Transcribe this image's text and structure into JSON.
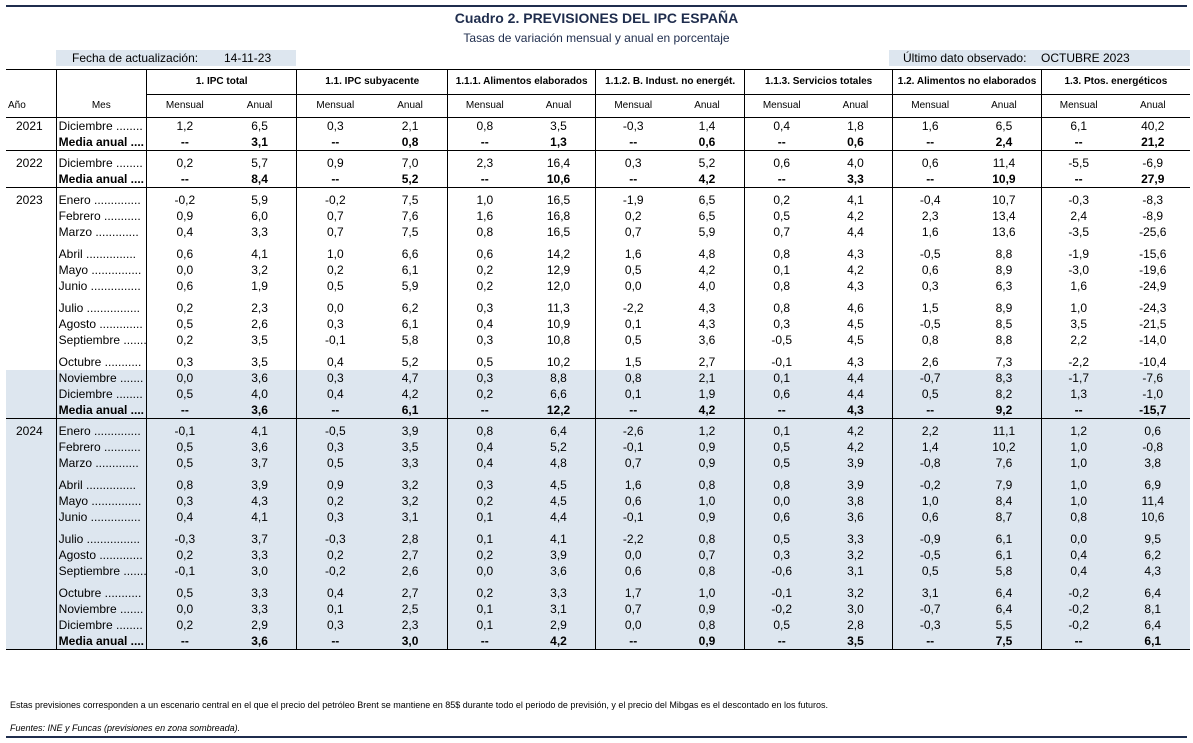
{
  "title": "Cuadro 2. PREVISIONES DEL IPC ESPAÑA",
  "subtitle": "Tasas de variación mensual y anual en porcentaje",
  "update_label": "Fecha de actualización:",
  "update_value": "14-11-23",
  "last_label": "Último dato observado:",
  "last_value": "OCTUBRE 2023",
  "header": {
    "year": "Año",
    "month": "Mes",
    "groups": [
      "1. IPC total",
      "1.1. IPC subyacente",
      "1.1.1. Alimentos elaborados",
      "1.1.2. B. Indust. no energét.",
      "1.1.3. Servicios totales",
      "1.2. Alimentos no elaborados",
      "1.3. Ptos. energéticos"
    ],
    "mensual": "Mensual",
    "anual": "Anual"
  },
  "rows": [
    {
      "year": "2021",
      "month": "Diciembre ........",
      "v": [
        "1,2",
        "6,5",
        "0,3",
        "2,1",
        "0,8",
        "3,5",
        "-0,3",
        "1,4",
        "0,4",
        "1,8",
        "1,6",
        "6,5",
        "6,1",
        "40,2"
      ]
    },
    {
      "year": "",
      "month": "Media anual ....",
      "bold": true,
      "end": true,
      "v": [
        "--",
        "3,1",
        "--",
        "0,8",
        "--",
        "1,3",
        "--",
        "0,6",
        "--",
        "0,6",
        "--",
        "2,4",
        "--",
        "21,2"
      ]
    },
    {
      "year": "2022",
      "month": "Diciembre ........",
      "v": [
        "0,2",
        "5,7",
        "0,9",
        "7,0",
        "2,3",
        "16,4",
        "0,3",
        "5,2",
        "0,6",
        "4,0",
        "0,6",
        "11,4",
        "-5,5",
        "-6,9"
      ]
    },
    {
      "year": "",
      "month": "Media anual ....",
      "bold": true,
      "end": true,
      "v": [
        "--",
        "8,4",
        "--",
        "5,2",
        "--",
        "10,6",
        "--",
        "4,2",
        "--",
        "3,3",
        "--",
        "10,9",
        "--",
        "27,9"
      ]
    },
    {
      "year": "2023",
      "month": "Enero ..............",
      "v": [
        "-0,2",
        "5,9",
        "-0,2",
        "7,5",
        "1,0",
        "16,5",
        "-1,9",
        "6,5",
        "0,2",
        "4,1",
        "-0,4",
        "10,7",
        "-0,3",
        "-8,3"
      ]
    },
    {
      "year": "",
      "month": "Febrero ...........",
      "v": [
        "0,9",
        "6,0",
        "0,7",
        "7,6",
        "1,6",
        "16,8",
        "0,2",
        "6,5",
        "0,5",
        "4,2",
        "2,3",
        "13,4",
        "2,4",
        "-8,9"
      ]
    },
    {
      "year": "",
      "month": "Marzo .............",
      "v": [
        "0,4",
        "3,3",
        "0,7",
        "7,5",
        "0,8",
        "16,5",
        "0,7",
        "5,9",
        "0,7",
        "4,4",
        "1,6",
        "13,6",
        "-3,5",
        "-25,6"
      ]
    },
    {
      "year": "",
      "month": "Abril ...............",
      "gap": true,
      "v": [
        "0,6",
        "4,1",
        "1,0",
        "6,6",
        "0,6",
        "14,2",
        "1,6",
        "4,8",
        "0,8",
        "4,3",
        "-0,5",
        "8,8",
        "-1,9",
        "-15,6"
      ]
    },
    {
      "year": "",
      "month": "Mayo ...............",
      "v": [
        "0,0",
        "3,2",
        "0,2",
        "6,1",
        "0,2",
        "12,9",
        "0,5",
        "4,2",
        "0,1",
        "4,2",
        "0,6",
        "8,9",
        "-3,0",
        "-19,6"
      ]
    },
    {
      "year": "",
      "month": "Junio ...............",
      "v": [
        "0,6",
        "1,9",
        "0,5",
        "5,9",
        "0,2",
        "12,0",
        "0,0",
        "4,0",
        "0,8",
        "4,3",
        "0,3",
        "6,3",
        "1,6",
        "-24,9"
      ]
    },
    {
      "year": "",
      "month": "Julio ................",
      "gap": true,
      "v": [
        "0,2",
        "2,3",
        "0,0",
        "6,2",
        "0,3",
        "11,3",
        "-2,2",
        "4,3",
        "0,8",
        "4,6",
        "1,5",
        "8,9",
        "1,0",
        "-24,3"
      ]
    },
    {
      "year": "",
      "month": "Agosto .............",
      "v": [
        "0,5",
        "2,6",
        "0,3",
        "6,1",
        "0,4",
        "10,9",
        "0,1",
        "4,3",
        "0,3",
        "4,5",
        "-0,5",
        "8,5",
        "3,5",
        "-21,5"
      ]
    },
    {
      "year": "",
      "month": "Septiembre .......",
      "v": [
        "0,2",
        "3,5",
        "-0,1",
        "5,8",
        "0,3",
        "10,8",
        "0,5",
        "3,6",
        "-0,5",
        "4,5",
        "0,8",
        "8,8",
        "2,2",
        "-14,0"
      ]
    },
    {
      "year": "",
      "month": "Octubre ...........",
      "gap": true,
      "v": [
        "0,3",
        "3,5",
        "0,4",
        "5,2",
        "0,5",
        "10,2",
        "1,5",
        "2,7",
        "-0,1",
        "4,3",
        "2,6",
        "7,3",
        "-2,2",
        "-10,4"
      ]
    },
    {
      "year": "",
      "month": "Noviembre .......",
      "shade": true,
      "v": [
        "0,0",
        "3,6",
        "0,3",
        "4,7",
        "0,3",
        "8,8",
        "0,8",
        "2,1",
        "0,1",
        "4,4",
        "-0,7",
        "8,3",
        "-1,7",
        "-7,6"
      ]
    },
    {
      "year": "",
      "month": "Diciembre ........",
      "shade": true,
      "v": [
        "0,5",
        "4,0",
        "0,4",
        "4,2",
        "0,2",
        "6,6",
        "0,1",
        "1,9",
        "0,6",
        "4,4",
        "0,5",
        "8,2",
        "1,3",
        "-1,0"
      ]
    },
    {
      "year": "",
      "month": "Media anual ....",
      "shade": true,
      "bold": true,
      "end": true,
      "v": [
        "--",
        "3,6",
        "--",
        "6,1",
        "--",
        "12,2",
        "--",
        "4,2",
        "--",
        "4,3",
        "--",
        "9,2",
        "--",
        "-15,7"
      ]
    },
    {
      "year": "2024",
      "month": "Enero ..............",
      "shade": true,
      "v": [
        "-0,1",
        "4,1",
        "-0,5",
        "3,9",
        "0,8",
        "6,4",
        "-2,6",
        "1,2",
        "0,1",
        "4,2",
        "2,2",
        "11,1",
        "1,2",
        "0,6"
      ]
    },
    {
      "year": "",
      "month": "Febrero ...........",
      "shade": true,
      "v": [
        "0,5",
        "3,6",
        "0,3",
        "3,5",
        "0,4",
        "5,2",
        "-0,1",
        "0,9",
        "0,5",
        "4,2",
        "1,4",
        "10,2",
        "1,0",
        "-0,8"
      ]
    },
    {
      "year": "",
      "month": "Marzo .............",
      "shade": true,
      "v": [
        "0,5",
        "3,7",
        "0,5",
        "3,3",
        "0,4",
        "4,8",
        "0,7",
        "0,9",
        "0,5",
        "3,9",
        "-0,8",
        "7,6",
        "1,0",
        "3,8"
      ]
    },
    {
      "year": "",
      "month": "Abril ...............",
      "shade": true,
      "gap": true,
      "v": [
        "0,8",
        "3,9",
        "0,9",
        "3,2",
        "0,3",
        "4,5",
        "1,6",
        "0,8",
        "0,8",
        "3,9",
        "-0,2",
        "7,9",
        "1,0",
        "6,9"
      ]
    },
    {
      "year": "",
      "month": "Mayo ...............",
      "shade": true,
      "v": [
        "0,3",
        "4,3",
        "0,2",
        "3,2",
        "0,2",
        "4,5",
        "0,6",
        "1,0",
        "0,0",
        "3,8",
        "1,0",
        "8,4",
        "1,0",
        "11,4"
      ]
    },
    {
      "year": "",
      "month": "Junio ...............",
      "shade": true,
      "v": [
        "0,4",
        "4,1",
        "0,3",
        "3,1",
        "0,1",
        "4,4",
        "-0,1",
        "0,9",
        "0,6",
        "3,6",
        "0,6",
        "8,7",
        "0,8",
        "10,6"
      ]
    },
    {
      "year": "",
      "month": "Julio ................",
      "shade": true,
      "gap": true,
      "v": [
        "-0,3",
        "3,7",
        "-0,3",
        "2,8",
        "0,1",
        "4,1",
        "-2,2",
        "0,8",
        "0,5",
        "3,3",
        "-0,9",
        "6,1",
        "0,0",
        "9,5"
      ]
    },
    {
      "year": "",
      "month": "Agosto .............",
      "shade": true,
      "v": [
        "0,2",
        "3,3",
        "0,2",
        "2,7",
        "0,2",
        "3,9",
        "0,0",
        "0,7",
        "0,3",
        "3,2",
        "-0,5",
        "6,1",
        "0,4",
        "6,2"
      ]
    },
    {
      "year": "",
      "month": "Septiembre .......",
      "shade": true,
      "v": [
        "-0,1",
        "3,0",
        "-0,2",
        "2,6",
        "0,0",
        "3,6",
        "0,6",
        "0,8",
        "-0,6",
        "3,1",
        "0,5",
        "5,8",
        "0,4",
        "4,3"
      ]
    },
    {
      "year": "",
      "month": "Octubre ...........",
      "shade": true,
      "gap": true,
      "v": [
        "0,5",
        "3,3",
        "0,4",
        "2,7",
        "0,2",
        "3,3",
        "1,7",
        "1,0",
        "-0,1",
        "3,2",
        "3,1",
        "6,4",
        "-0,2",
        "6,4"
      ]
    },
    {
      "year": "",
      "month": "Noviembre .......",
      "shade": true,
      "v": [
        "0,0",
        "3,3",
        "0,1",
        "2,5",
        "0,1",
        "3,1",
        "0,7",
        "0,9",
        "-0,2",
        "3,0",
        "-0,7",
        "6,4",
        "-0,2",
        "8,1"
      ]
    },
    {
      "year": "",
      "month": "Diciembre ........",
      "shade": true,
      "v": [
        "0,2",
        "2,9",
        "0,3",
        "2,3",
        "0,1",
        "2,9",
        "0,0",
        "0,8",
        "0,5",
        "2,8",
        "-0,3",
        "5,5",
        "-0,2",
        "6,4"
      ]
    },
    {
      "year": "",
      "month": "Media anual ....",
      "shade": true,
      "bold": true,
      "end": true,
      "v": [
        "--",
        "3,6",
        "--",
        "3,0",
        "--",
        "4,2",
        "--",
        "0,9",
        "--",
        "3,5",
        "--",
        "7,5",
        "--",
        "6,1"
      ]
    }
  ],
  "note": "Estas previsiones corresponden a un escenario central en el que el precio del petróleo Brent se mantiene en 85$ durante todo el periodo de previsión, y el precio del Mibgas es el descontado en los futuros.",
  "source": "Fuentes: INE y Funcas (previsiones en zona sombreada)."
}
